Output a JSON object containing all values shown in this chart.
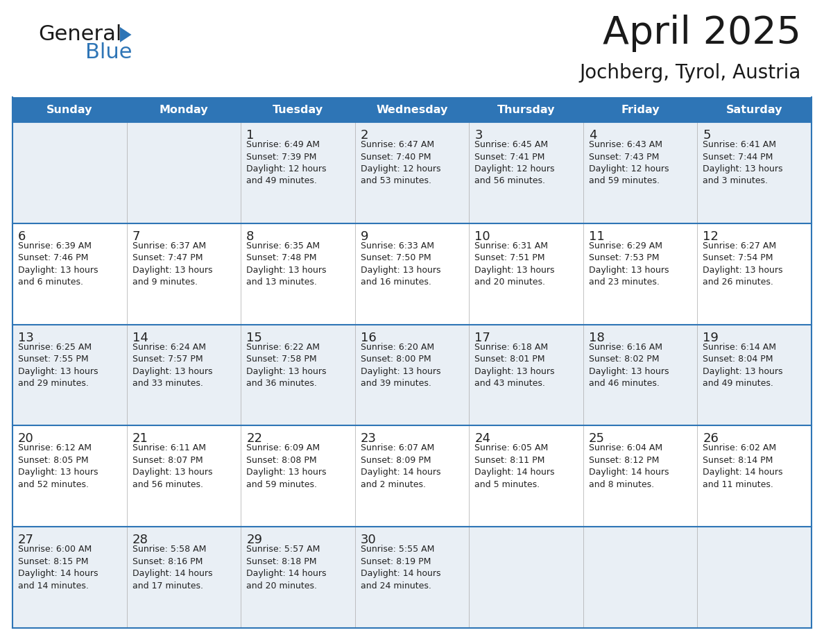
{
  "title": "April 2025",
  "subtitle": "Jochberg, Tyrol, Austria",
  "header_bg": "#2E75B6",
  "header_text_color": "#FFFFFF",
  "row_bg_odd": "#E9EFF5",
  "row_bg_even": "#FFFFFF",
  "grid_color": "#2E75B6",
  "text_color": "#222222",
  "logo_text_color": "#1a1a1a",
  "logo_blue_color": "#2E75B6",
  "days_of_week": [
    "Sunday",
    "Monday",
    "Tuesday",
    "Wednesday",
    "Thursday",
    "Friday",
    "Saturday"
  ],
  "calendar_data": [
    [
      {
        "day": "",
        "info": ""
      },
      {
        "day": "",
        "info": ""
      },
      {
        "day": "1",
        "info": "Sunrise: 6:49 AM\nSunset: 7:39 PM\nDaylight: 12 hours\nand 49 minutes."
      },
      {
        "day": "2",
        "info": "Sunrise: 6:47 AM\nSunset: 7:40 PM\nDaylight: 12 hours\nand 53 minutes."
      },
      {
        "day": "3",
        "info": "Sunrise: 6:45 AM\nSunset: 7:41 PM\nDaylight: 12 hours\nand 56 minutes."
      },
      {
        "day": "4",
        "info": "Sunrise: 6:43 AM\nSunset: 7:43 PM\nDaylight: 12 hours\nand 59 minutes."
      },
      {
        "day": "5",
        "info": "Sunrise: 6:41 AM\nSunset: 7:44 PM\nDaylight: 13 hours\nand 3 minutes."
      }
    ],
    [
      {
        "day": "6",
        "info": "Sunrise: 6:39 AM\nSunset: 7:46 PM\nDaylight: 13 hours\nand 6 minutes."
      },
      {
        "day": "7",
        "info": "Sunrise: 6:37 AM\nSunset: 7:47 PM\nDaylight: 13 hours\nand 9 minutes."
      },
      {
        "day": "8",
        "info": "Sunrise: 6:35 AM\nSunset: 7:48 PM\nDaylight: 13 hours\nand 13 minutes."
      },
      {
        "day": "9",
        "info": "Sunrise: 6:33 AM\nSunset: 7:50 PM\nDaylight: 13 hours\nand 16 minutes."
      },
      {
        "day": "10",
        "info": "Sunrise: 6:31 AM\nSunset: 7:51 PM\nDaylight: 13 hours\nand 20 minutes."
      },
      {
        "day": "11",
        "info": "Sunrise: 6:29 AM\nSunset: 7:53 PM\nDaylight: 13 hours\nand 23 minutes."
      },
      {
        "day": "12",
        "info": "Sunrise: 6:27 AM\nSunset: 7:54 PM\nDaylight: 13 hours\nand 26 minutes."
      }
    ],
    [
      {
        "day": "13",
        "info": "Sunrise: 6:25 AM\nSunset: 7:55 PM\nDaylight: 13 hours\nand 29 minutes."
      },
      {
        "day": "14",
        "info": "Sunrise: 6:24 AM\nSunset: 7:57 PM\nDaylight: 13 hours\nand 33 minutes."
      },
      {
        "day": "15",
        "info": "Sunrise: 6:22 AM\nSunset: 7:58 PM\nDaylight: 13 hours\nand 36 minutes."
      },
      {
        "day": "16",
        "info": "Sunrise: 6:20 AM\nSunset: 8:00 PM\nDaylight: 13 hours\nand 39 minutes."
      },
      {
        "day": "17",
        "info": "Sunrise: 6:18 AM\nSunset: 8:01 PM\nDaylight: 13 hours\nand 43 minutes."
      },
      {
        "day": "18",
        "info": "Sunrise: 6:16 AM\nSunset: 8:02 PM\nDaylight: 13 hours\nand 46 minutes."
      },
      {
        "day": "19",
        "info": "Sunrise: 6:14 AM\nSunset: 8:04 PM\nDaylight: 13 hours\nand 49 minutes."
      }
    ],
    [
      {
        "day": "20",
        "info": "Sunrise: 6:12 AM\nSunset: 8:05 PM\nDaylight: 13 hours\nand 52 minutes."
      },
      {
        "day": "21",
        "info": "Sunrise: 6:11 AM\nSunset: 8:07 PM\nDaylight: 13 hours\nand 56 minutes."
      },
      {
        "day": "22",
        "info": "Sunrise: 6:09 AM\nSunset: 8:08 PM\nDaylight: 13 hours\nand 59 minutes."
      },
      {
        "day": "23",
        "info": "Sunrise: 6:07 AM\nSunset: 8:09 PM\nDaylight: 14 hours\nand 2 minutes."
      },
      {
        "day": "24",
        "info": "Sunrise: 6:05 AM\nSunset: 8:11 PM\nDaylight: 14 hours\nand 5 minutes."
      },
      {
        "day": "25",
        "info": "Sunrise: 6:04 AM\nSunset: 8:12 PM\nDaylight: 14 hours\nand 8 minutes."
      },
      {
        "day": "26",
        "info": "Sunrise: 6:02 AM\nSunset: 8:14 PM\nDaylight: 14 hours\nand 11 minutes."
      }
    ],
    [
      {
        "day": "27",
        "info": "Sunrise: 6:00 AM\nSunset: 8:15 PM\nDaylight: 14 hours\nand 14 minutes."
      },
      {
        "day": "28",
        "info": "Sunrise: 5:58 AM\nSunset: 8:16 PM\nDaylight: 14 hours\nand 17 minutes."
      },
      {
        "day": "29",
        "info": "Sunrise: 5:57 AM\nSunset: 8:18 PM\nDaylight: 14 hours\nand 20 minutes."
      },
      {
        "day": "30",
        "info": "Sunrise: 5:55 AM\nSunset: 8:19 PM\nDaylight: 14 hours\nand 24 minutes."
      },
      {
        "day": "",
        "info": ""
      },
      {
        "day": "",
        "info": ""
      },
      {
        "day": "",
        "info": ""
      }
    ]
  ]
}
